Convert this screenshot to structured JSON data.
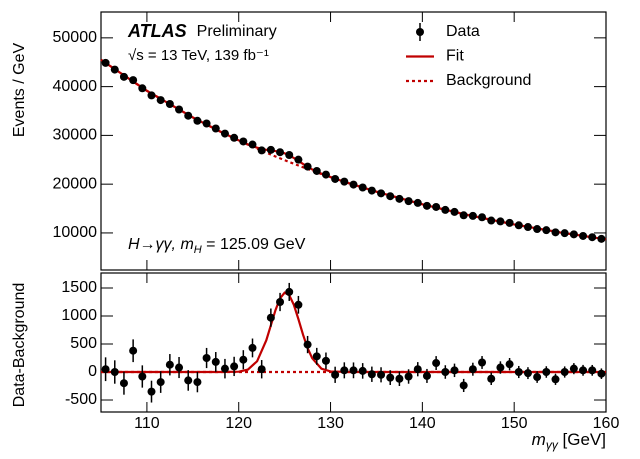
{
  "chart_data": [
    {
      "type": "line",
      "y_label": "Events / GeV",
      "experiment": "ATLAS",
      "status": "Preliminary",
      "energy": "√s = 13 TeV, 139 fb⁻¹",
      "process": {
        "text": "H→γγ, m",
        "subscript": "H",
        "rest": " = 125.09 GeV"
      },
      "legend": "upper right",
      "xlim": [
        105,
        160
      ],
      "ylim": [
        2400,
        55300
      ],
      "yticks": [
        10000,
        20000,
        30000,
        40000,
        50000
      ],
      "series": [
        {
          "name": "Data",
          "color": "#000000",
          "style": "points",
          "x": [
            105.5,
            106.5,
            107.5,
            108.5,
            109.5,
            110.5,
            111.5,
            112.5,
            113.5,
            114.5,
            115.5,
            116.5,
            117.5,
            118.5,
            119.5,
            120.5,
            121.5,
            122.5,
            123.5,
            124.5,
            125.5,
            126.5,
            127.5,
            128.5,
            129.5,
            130.5,
            131.5,
            132.5,
            133.5,
            134.5,
            135.5,
            136.5,
            137.5,
            138.5,
            139.5,
            140.5,
            141.5,
            142.5,
            143.5,
            144.5,
            145.5,
            146.5,
            147.5,
            148.5,
            149.5,
            150.5,
            151.5,
            152.5,
            153.5,
            154.5,
            155.5,
            156.5,
            157.5,
            158.5,
            159.5
          ],
          "values": [
            44870,
            43491,
            42002,
            41331,
            39656,
            38208,
            37235,
            36436,
            35309,
            34035,
            32991,
            32438,
            31413,
            30367,
            29508,
            28756,
            28120,
            26919,
            27043,
            26550,
            25980,
            25022,
            23605,
            22710,
            21965,
            21069,
            20523,
            19916,
            19316,
            18684,
            18119,
            17530,
            16987,
            16520,
            16158,
            15560,
            15327,
            14717,
            14311,
            13617,
            13496,
            13218,
            12541,
            12366,
            12061,
            11568,
            11205,
            10802,
            10569,
            10126,
            9952,
            9717,
            9380,
            9122,
            8793
          ]
        },
        {
          "name": "Fit",
          "color": "#c00000",
          "style": "solid",
          "x": [
            105,
            110,
            115,
            118,
            120,
            121,
            122,
            123,
            124,
            125,
            126,
            127,
            128,
            129,
            130,
            132,
            135,
            140,
            145,
            150,
            155,
            160
          ],
          "values": [
            45500,
            39140,
            33680,
            30770,
            28976,
            28153,
            27472,
            27036,
            26784,
            26337,
            25380,
            24139,
            23017,
            22150,
            21450,
            20190,
            18450,
            15870,
            13650,
            11740,
            10100,
            8690
          ]
        },
        {
          "name": "Background",
          "color": "#c00000",
          "style": "dotted",
          "x": [
            105,
            110,
            115,
            118,
            120,
            121,
            122,
            123,
            124,
            125,
            126,
            127,
            128,
            129,
            130,
            132,
            135,
            140,
            145,
            150,
            155,
            160
          ],
          "values": [
            45500,
            39140,
            33680,
            30770,
            28970,
            28110,
            27280,
            26470,
            25680,
            24920,
            24180,
            23470,
            22770,
            22090,
            21440,
            20190,
            18450,
            15870,
            13650,
            11740,
            10100,
            8690
          ]
        }
      ]
    },
    {
      "type": "line",
      "y_label": "Data-Background",
      "x_label": {
        "symbol": "m",
        "subscript": "γγ",
        "unit": " [GeV]"
      },
      "xlim": [
        105,
        160
      ],
      "ylim": [
        -714,
        1768
      ],
      "xticks": [
        110,
        120,
        130,
        140,
        150,
        160
      ],
      "yticks": [
        -500,
        0,
        500,
        1000,
        1500
      ],
      "series": [
        {
          "color": "#000000",
          "style": "points",
          "x": [
            105.5,
            106.5,
            107.5,
            108.5,
            109.5,
            110.5,
            111.5,
            112.5,
            113.5,
            114.5,
            115.5,
            116.5,
            117.5,
            118.5,
            119.5,
            120.5,
            121.5,
            122.5,
            123.5,
            124.5,
            125.5,
            126.5,
            127.5,
            128.5,
            129.5,
            130.5,
            131.5,
            132.5,
            133.5,
            134.5,
            135.5,
            136.5,
            137.5,
            138.5,
            139.5,
            140.5,
            141.5,
            142.5,
            143.5,
            144.5,
            145.5,
            146.5,
            147.5,
            148.5,
            149.5,
            150.5,
            151.5,
            152.5,
            153.5,
            154.5,
            155.5,
            156.5,
            157.5,
            158.5,
            159.5
          ],
          "values": [
            50,
            0,
            -200,
            380,
            -80,
            -350,
            -180,
            130,
            80,
            -150,
            -180,
            250,
            180,
            60,
            100,
            220,
            430,
            50,
            970,
            1250,
            1430,
            1200,
            490,
            280,
            200,
            -50,
            30,
            30,
            20,
            -40,
            -50,
            -100,
            -120,
            -80,
            50,
            -70,
            160,
            0,
            30,
            -240,
            50,
            170,
            -120,
            80,
            140,
            0,
            -20,
            -90,
            0,
            -130,
            0,
            60,
            30,
            30,
            -30
          ],
          "errors": [
            212,
            209,
            205,
            203,
            199,
            195,
            193,
            191,
            188,
            184,
            182,
            180,
            177,
            174,
            172,
            170,
            168,
            164,
            164,
            163,
            161,
            158,
            154,
            151,
            148,
            145,
            143,
            141,
            139,
            137,
            135,
            132,
            130,
            129,
            127,
            125,
            124,
            121,
            120,
            117,
            116,
            115,
            112,
            111,
            110,
            108,
            106,
            104,
            103,
            101,
            100,
            99,
            97,
            96,
            94
          ]
        },
        {
          "color": "#c00000",
          "style": "solid",
          "x": [
            105,
            118,
            120,
            121,
            122,
            123,
            123.5,
            124,
            124.5,
            125,
            125.5,
            126,
            126.5,
            127,
            127.5,
            128,
            129,
            130,
            132,
            160
          ],
          "values": [
            0,
            0,
            6,
            43,
            192,
            566,
            833,
            1104,
            1317,
            1417,
            1373,
            1200,
            944,
            669,
            428,
            247,
            60,
            10,
            0,
            0
          ]
        },
        {
          "color": "#c00000",
          "style": "dotted",
          "x": [
            105,
            160
          ],
          "values": [
            0,
            0
          ]
        }
      ]
    }
  ]
}
